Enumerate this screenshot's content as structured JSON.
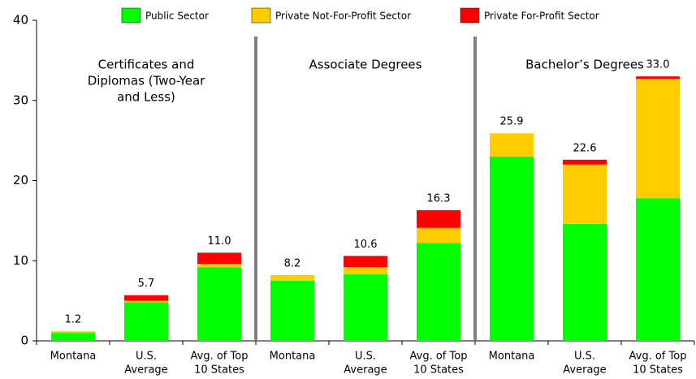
{
  "chart_data": {
    "type": "bar",
    "stacked": true,
    "groups": [
      [
        "Certificates and",
        "Diplomas (Two-Year",
        "and Less)"
      ],
      [
        "Associate Degrees"
      ],
      [
        "Bachelor’s Degrees"
      ]
    ],
    "categories": [
      [
        "Montana"
      ],
      [
        "U.S.",
        "Average"
      ],
      [
        "Avg. of Top",
        "10 States"
      ],
      [
        "Montana"
      ],
      [
        "U.S.",
        "Average"
      ],
      [
        "Avg. of Top",
        "10 States"
      ],
      [
        "Montana"
      ],
      [
        "U.S.",
        "Average"
      ],
      [
        "Avg. of Top",
        "10 States"
      ]
    ],
    "series": [
      {
        "name": "Public Sector",
        "color": "#00ff00",
        "values": [
          1.0,
          4.8,
          9.2,
          7.5,
          8.3,
          12.2,
          23.0,
          14.6,
          17.8
        ]
      },
      {
        "name": "Private Not-For-Profit Sector",
        "color": "#ffcc00",
        "values": [
          0.2,
          0.2,
          0.4,
          0.7,
          0.9,
          1.9,
          2.9,
          7.4,
          14.9
        ]
      },
      {
        "name": "Private For-Profit Sector",
        "color": "#ff0000",
        "values": [
          0.0,
          0.7,
          1.4,
          0.0,
          1.4,
          2.2,
          0.0,
          0.6,
          0.3
        ]
      }
    ],
    "totals": {
      "values": [
        1.2,
        5.7,
        11.0,
        8.2,
        10.6,
        16.3,
        25.9,
        22.6,
        33.0
      ],
      "value_labels": [
        "1.2",
        "5.7",
        "11.0",
        "8.2",
        "10.6",
        "16.3",
        "25.9",
        "22.6",
        "33.0"
      ]
    },
    "ylim": [
      0,
      40
    ],
    "yticks": [
      0,
      10,
      20,
      30,
      40
    ]
  }
}
